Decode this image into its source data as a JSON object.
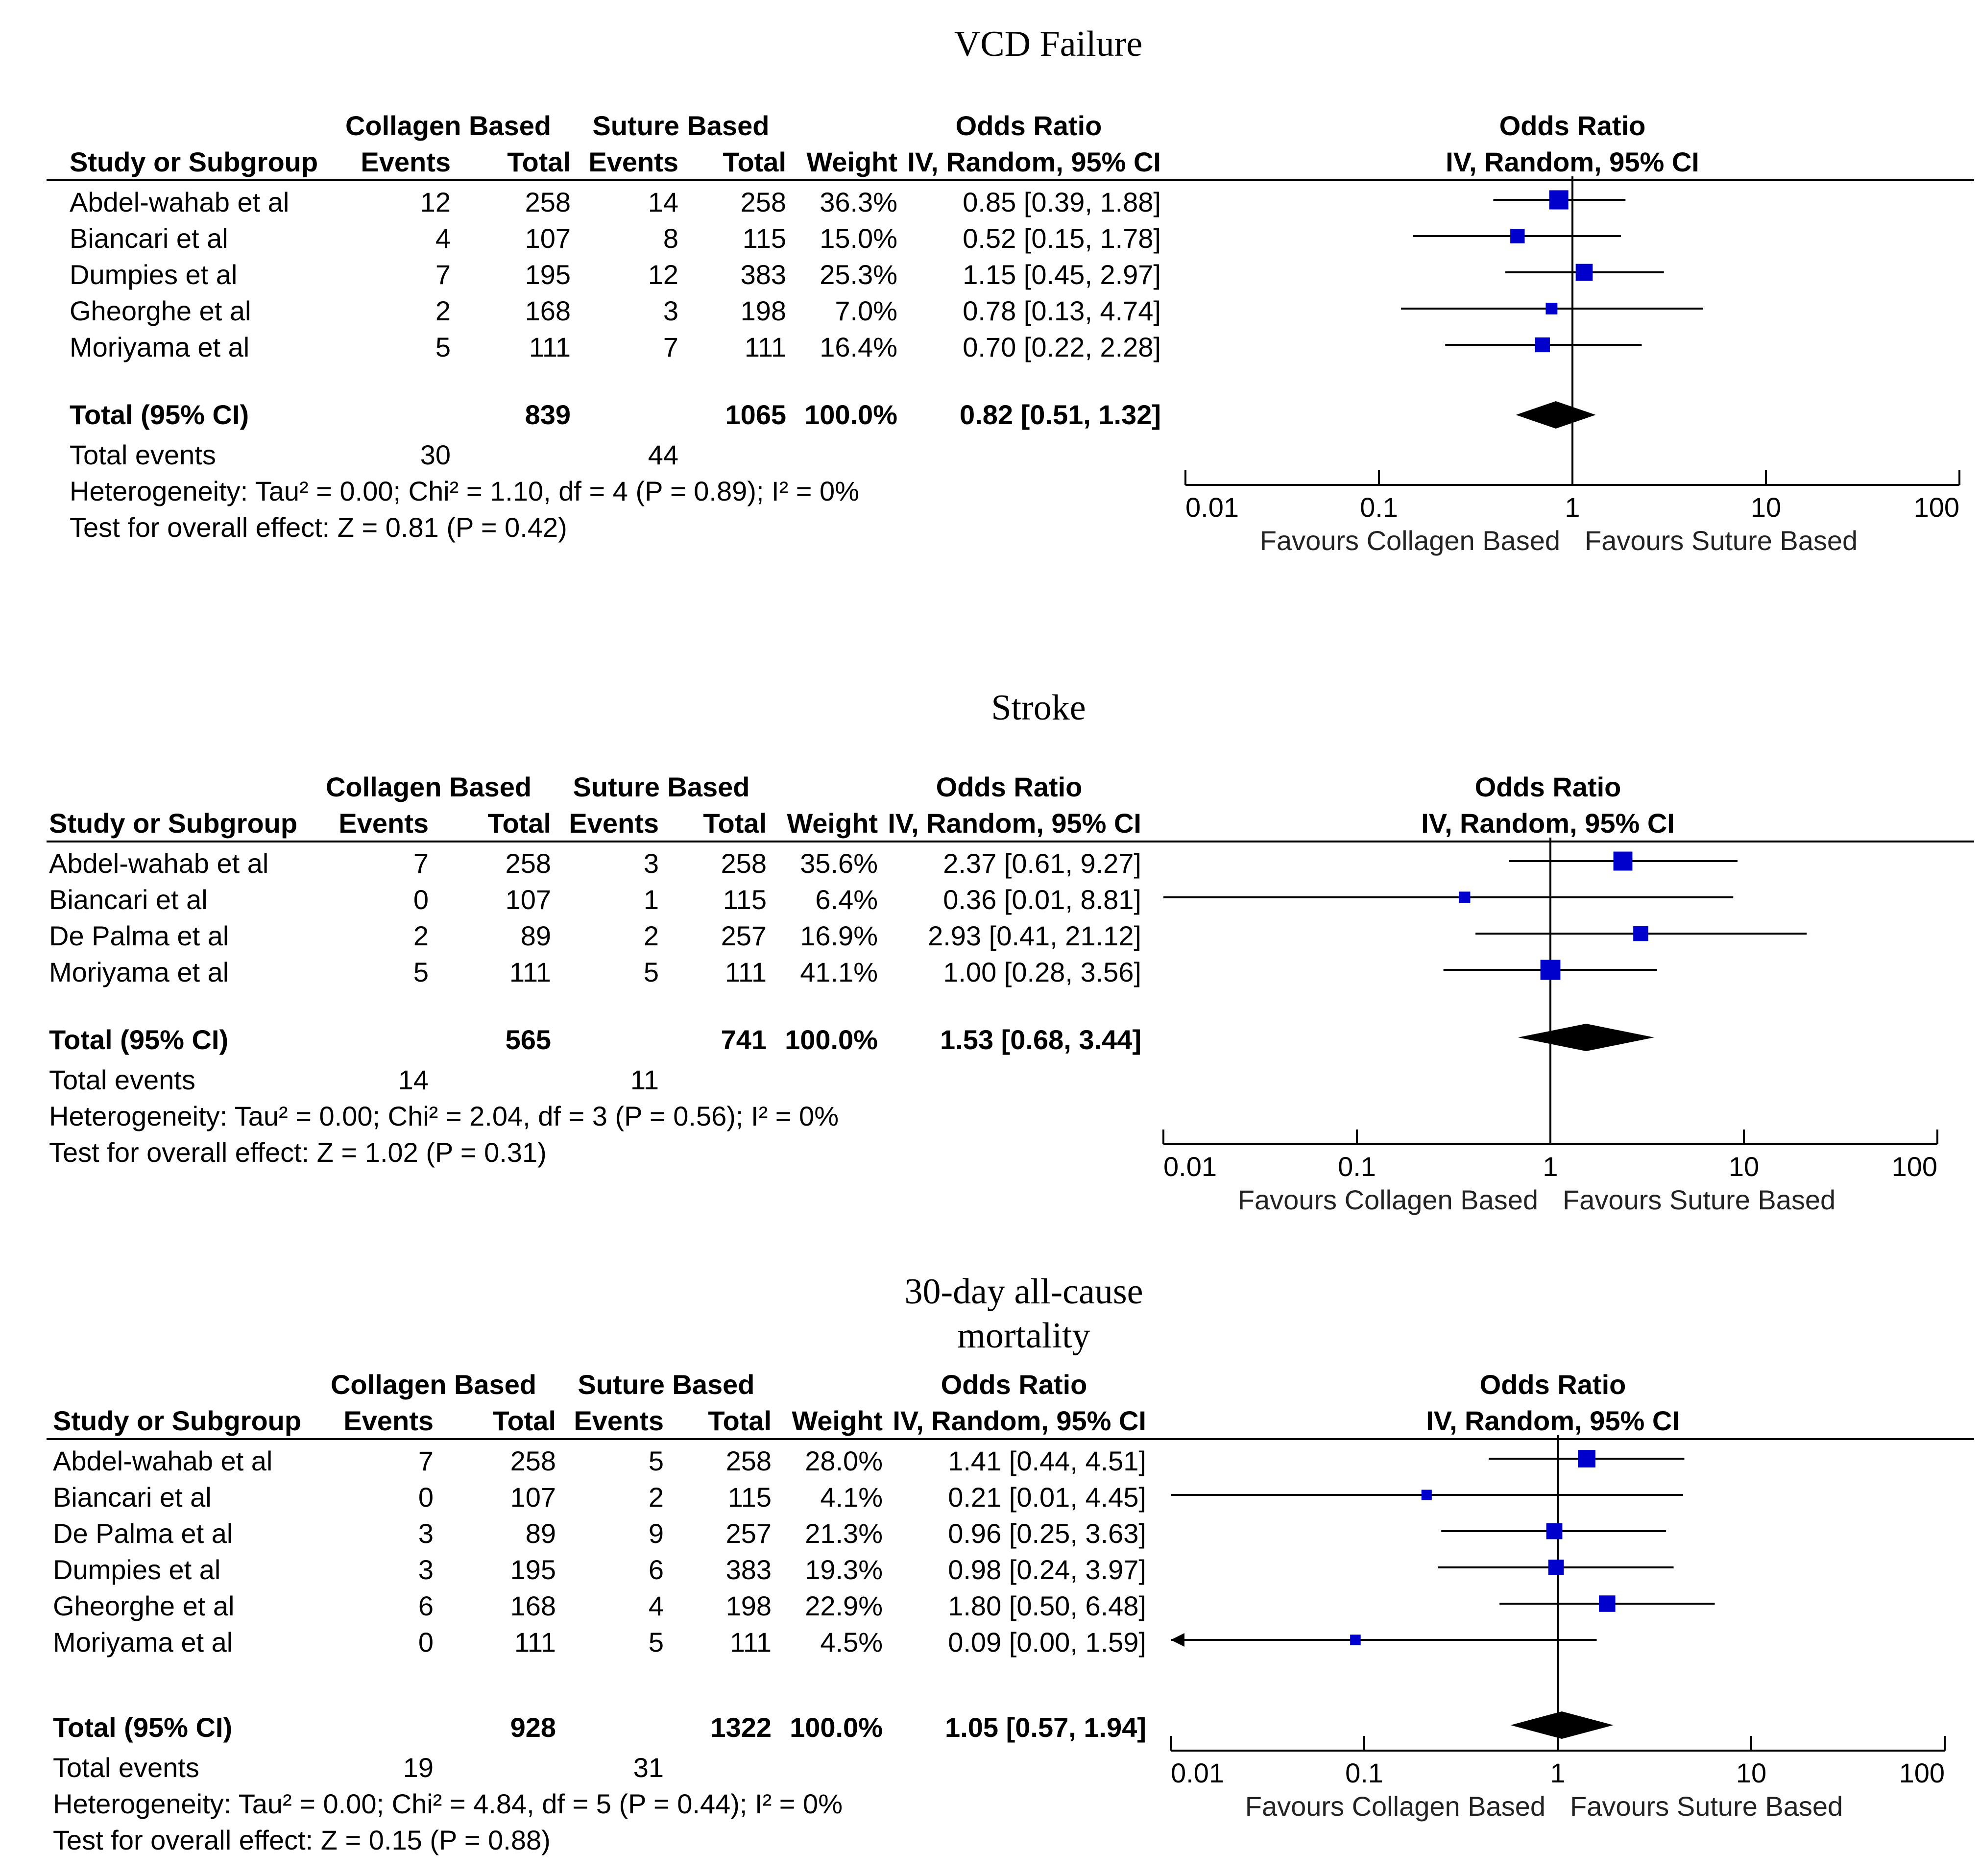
{
  "chart_data": [
    {
      "type": "forest",
      "title": "VCD Failure",
      "header": {
        "group1": "Collagen Based",
        "group2": "Suture Based",
        "stat_top": "Odds Ratio",
        "stat_method": "IV, Random, 95% CI",
        "study": "Study or Subgroup",
        "events": "Events",
        "total": "Total",
        "weight": "Weight"
      },
      "studies": [
        {
          "name": "Abdel-wahab et al",
          "e1": "12",
          "t1": "258",
          "e2": "14",
          "t2": "258",
          "weight": "36.3%",
          "ci_text": "0.85 [0.39, 1.88]",
          "or": 0.85,
          "lo": 0.39,
          "hi": 1.88,
          "w": 36.3
        },
        {
          "name": "Biancari et al",
          "e1": "4",
          "t1": "107",
          "e2": "8",
          "t2": "115",
          "weight": "15.0%",
          "ci_text": "0.52 [0.15, 1.78]",
          "or": 0.52,
          "lo": 0.15,
          "hi": 1.78,
          "w": 15.0
        },
        {
          "name": "Dumpies et al",
          "e1": "7",
          "t1": "195",
          "e2": "12",
          "t2": "383",
          "weight": "25.3%",
          "ci_text": "1.15 [0.45, 2.97]",
          "or": 1.15,
          "lo": 0.45,
          "hi": 2.97,
          "w": 25.3
        },
        {
          "name": "Gheorghe et al",
          "e1": "2",
          "t1": "168",
          "e2": "3",
          "t2": "198",
          "weight": "7.0%",
          "ci_text": "0.78 [0.13, 4.74]",
          "or": 0.78,
          "lo": 0.13,
          "hi": 4.74,
          "w": 7.0
        },
        {
          "name": "Moriyama et al",
          "e1": "5",
          "t1": "111",
          "e2": "7",
          "t2": "111",
          "weight": "16.4%",
          "ci_text": "0.70 [0.22, 2.28]",
          "or": 0.7,
          "lo": 0.22,
          "hi": 2.28,
          "w": 16.4
        }
      ],
      "total": {
        "label": "Total (95% CI)",
        "t1": "839",
        "t2": "1065",
        "weight": "100.0%",
        "ci_text": "0.82 [0.51, 1.32]",
        "or": 0.82,
        "lo": 0.51,
        "hi": 1.32
      },
      "total_events": {
        "label": "Total events",
        "e1": "30",
        "e2": "44"
      },
      "heterogeneity": "Heterogeneity: Tau² = 0.00; Chi² = 1.10, df = 4 (P = 0.89); I² = 0%",
      "overall_effect": "Test for overall effect: Z = 0.81 (P = 0.42)",
      "axis": {
        "scale": "log",
        "range": [
          0.01,
          100
        ],
        "ticks": [
          0.01,
          0.1,
          1,
          10,
          100
        ],
        "tick_labels": [
          "0.01",
          "0.1",
          "1",
          "10",
          "100"
        ],
        "left_label": "Favours Collagen Based",
        "right_label": "Favours Suture Based"
      }
    },
    {
      "type": "forest",
      "title": "Stroke",
      "header": {
        "group1": "Collagen Based",
        "group2": "Suture Based",
        "stat_top": "Odds Ratio",
        "stat_method": "IV, Random, 95% CI",
        "study": "Study or Subgroup",
        "events": "Events",
        "total": "Total",
        "weight": "Weight"
      },
      "studies": [
        {
          "name": "Abdel-wahab et al",
          "e1": "7",
          "t1": "258",
          "e2": "3",
          "t2": "258",
          "weight": "35.6%",
          "ci_text": "2.37 [0.61, 9.27]",
          "or": 2.37,
          "lo": 0.61,
          "hi": 9.27,
          "w": 35.6
        },
        {
          "name": "Biancari et al",
          "e1": "0",
          "t1": "107",
          "e2": "1",
          "t2": "115",
          "weight": "6.4%",
          "ci_text": "0.36 [0.01, 8.81]",
          "or": 0.36,
          "lo": 0.01,
          "hi": 8.81,
          "w": 6.4
        },
        {
          "name": "De Palma et al",
          "e1": "2",
          "t1": "89",
          "e2": "2",
          "t2": "257",
          "weight": "16.9%",
          "ci_text": "2.93 [0.41, 21.12]",
          "or": 2.93,
          "lo": 0.41,
          "hi": 21.12,
          "w": 16.9
        },
        {
          "name": "Moriyama et al",
          "e1": "5",
          "t1": "111",
          "e2": "5",
          "t2": "111",
          "weight": "41.1%",
          "ci_text": "1.00 [0.28, 3.56]",
          "or": 1.0,
          "lo": 0.28,
          "hi": 3.56,
          "w": 41.1
        }
      ],
      "total": {
        "label": "Total (95% CI)",
        "t1": "565",
        "t2": "741",
        "weight": "100.0%",
        "ci_text": "1.53 [0.68, 3.44]",
        "or": 1.53,
        "lo": 0.68,
        "hi": 3.44
      },
      "total_events": {
        "label": "Total events",
        "e1": "14",
        "e2": "11"
      },
      "heterogeneity": "Heterogeneity: Tau² = 0.00; Chi² = 2.04, df = 3 (P = 0.56); I² = 0%",
      "overall_effect": "Test for overall effect: Z = 1.02 (P = 0.31)",
      "axis": {
        "scale": "log",
        "range": [
          0.01,
          100
        ],
        "ticks": [
          0.01,
          0.1,
          1,
          10,
          100
        ],
        "tick_labels": [
          "0.01",
          "0.1",
          "1",
          "10",
          "100"
        ],
        "left_label": "Favours Collagen Based",
        "right_label": "Favours Suture Based"
      }
    },
    {
      "type": "forest",
      "title_lines": [
        "30-day all-cause",
        "mortality"
      ],
      "header": {
        "group1": "Collagen Based",
        "group2": "Suture Based",
        "stat_top": "Odds Ratio",
        "stat_method": "IV, Random, 95% CI",
        "study": "Study or Subgroup",
        "events": "Events",
        "total": "Total",
        "weight": "Weight"
      },
      "studies": [
        {
          "name": "Abdel-wahab et al",
          "e1": "7",
          "t1": "258",
          "e2": "5",
          "t2": "258",
          "weight": "28.0%",
          "ci_text": "1.41 [0.44, 4.51]",
          "or": 1.41,
          "lo": 0.44,
          "hi": 4.51,
          "w": 28.0
        },
        {
          "name": "Biancari et al",
          "e1": "0",
          "t1": "107",
          "e2": "2",
          "t2": "115",
          "weight": "4.1%",
          "ci_text": "0.21 [0.01, 4.45]",
          "or": 0.21,
          "lo": 0.01,
          "hi": 4.45,
          "w": 4.1
        },
        {
          "name": "De Palma et al",
          "e1": "3",
          "t1": "89",
          "e2": "9",
          "t2": "257",
          "weight": "21.3%",
          "ci_text": "0.96 [0.25, 3.63]",
          "or": 0.96,
          "lo": 0.25,
          "hi": 3.63,
          "w": 21.3
        },
        {
          "name": "Dumpies et al",
          "e1": "3",
          "t1": "195",
          "e2": "6",
          "t2": "383",
          "weight": "19.3%",
          "ci_text": "0.98 [0.24, 3.97]",
          "or": 0.98,
          "lo": 0.24,
          "hi": 3.97,
          "w": 19.3
        },
        {
          "name": "Gheorghe et al",
          "e1": "6",
          "t1": "168",
          "e2": "4",
          "t2": "198",
          "weight": "22.9%",
          "ci_text": "1.80 [0.50, 6.48]",
          "or": 1.8,
          "lo": 0.5,
          "hi": 6.48,
          "w": 22.9
        },
        {
          "name": "Moriyama et al",
          "e1": "0",
          "t1": "111",
          "e2": "5",
          "t2": "111",
          "weight": "4.5%",
          "ci_text": "0.09 [0.00, 1.59]",
          "or": 0.09,
          "lo": 0.0,
          "hi": 1.59,
          "w": 4.5
        }
      ],
      "total": {
        "label": "Total (95% CI)",
        "t1": "928",
        "t2": "1322",
        "weight": "100.0%",
        "ci_text": "1.05 [0.57, 1.94]",
        "or": 1.05,
        "lo": 0.57,
        "hi": 1.94
      },
      "total_events": {
        "label": "Total events",
        "e1": "19",
        "e2": "31"
      },
      "heterogeneity": "Heterogeneity: Tau² = 0.00; Chi² = 4.84, df = 5 (P = 0.44); I² = 0%",
      "overall_effect": "Test for overall effect: Z = 0.15 (P = 0.88)",
      "axis": {
        "scale": "log",
        "range": [
          0.01,
          100
        ],
        "ticks": [
          0.01,
          0.1,
          1,
          10,
          100
        ],
        "tick_labels": [
          "0.01",
          "0.1",
          "1",
          "10",
          "100"
        ],
        "left_label": "Favours Collagen Based",
        "right_label": "Favours Suture Based"
      }
    }
  ],
  "colors": {
    "marker": "#0000cc",
    "diamond": "#000000",
    "line": "#000000"
  }
}
